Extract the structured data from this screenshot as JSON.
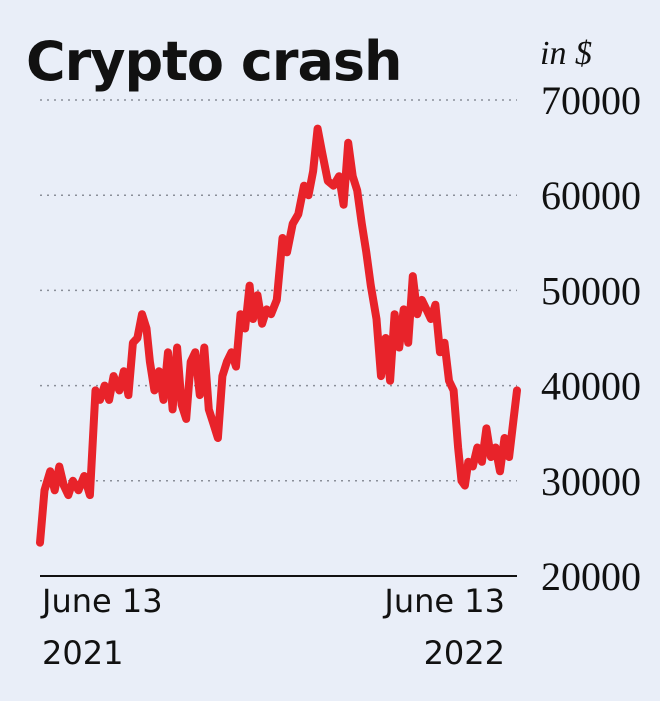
{
  "chart_data": {
    "type": "line",
    "title": "Crypto crash",
    "unit_label": "in $",
    "ylim": [
      20000,
      70000
    ],
    "y_ticks": [
      "70000",
      "60000",
      "50000",
      "40000",
      "30000",
      "20000"
    ],
    "x_ticks": [
      {
        "date": "2021-06-13",
        "line1": "June 13",
        "line2": "2021"
      },
      {
        "date": "2022-06-13",
        "line1": "June 13",
        "line2": "2022"
      }
    ],
    "grid": "horizontal-dotted",
    "colors": {
      "line": "#e8232a",
      "background": "#e9eef8"
    },
    "series": [
      {
        "x": [
          "2021-06-01",
          "2021-06-05",
          "2021-06-10",
          "2021-06-14",
          "2021-06-18",
          "2021-06-22",
          "2021-06-26",
          "2021-06-30",
          "2021-07-05",
          "2021-07-10",
          "2021-07-15",
          "2021-07-20",
          "2021-07-24",
          "2021-07-28",
          "2021-08-01",
          "2021-08-05",
          "2021-08-10",
          "2021-08-14",
          "2021-08-18",
          "2021-08-22",
          "2021-08-26",
          "2021-08-30",
          "2021-09-03",
          "2021-09-06",
          "2021-09-10",
          "2021-09-14",
          "2021-09-18",
          "2021-09-22",
          "2021-09-26",
          "2021-09-30",
          "2021-10-04",
          "2021-10-08",
          "2021-10-12",
          "2021-10-16",
          "2021-10-20",
          "2021-10-24",
          "2021-10-28",
          "2021-11-01",
          "2021-11-05",
          "2021-11-09",
          "2021-11-13",
          "2021-11-17",
          "2021-11-21",
          "2021-11-25",
          "2021-11-29",
          "2021-12-03",
          "2021-12-06",
          "2021-12-10",
          "2021-12-14",
          "2021-12-18",
          "2021-12-22",
          "2021-12-27",
          "2022-01-01",
          "2022-01-05",
          "2022-01-10",
          "2022-01-15",
          "2022-01-20",
          "2022-01-24",
          "2022-01-28",
          "2022-02-01",
          "2022-02-05",
          "2022-02-10",
          "2022-02-15",
          "2022-02-20",
          "2022-02-24",
          "2022-02-28",
          "2022-03-04",
          "2022-03-08",
          "2022-03-12",
          "2022-03-16",
          "2022-03-20",
          "2022-03-25",
          "2022-03-29",
          "2022-04-02",
          "2022-04-06",
          "2022-04-10",
          "2022-04-14",
          "2022-04-18",
          "2022-04-22",
          "2022-04-26",
          "2022-04-30",
          "2022-05-04",
          "2022-05-08",
          "2022-05-12",
          "2022-05-16",
          "2022-05-20",
          "2022-05-24",
          "2022-05-28",
          "2022-06-01",
          "2022-06-05",
          "2022-06-08",
          "2022-06-11",
          "2022-06-14",
          "2022-06-18",
          "2022-06-22",
          "2022-06-26",
          "2022-06-30",
          "2022-07-04",
          "2022-07-08",
          "2022-07-12",
          "2022-07-16",
          "2022-07-20",
          "2022-07-24",
          "2022-07-27"
        ],
        "values": [
          23500,
          29000,
          31000,
          29000,
          31500,
          29500,
          28500,
          30000,
          29000,
          30500,
          28500,
          39500,
          38500,
          40000,
          38500,
          41000,
          39500,
          41500,
          39000,
          44500,
          45000,
          47500,
          46000,
          42500,
          39500,
          41500,
          38500,
          43500,
          37500,
          44000,
          38000,
          36500,
          42500,
          43500,
          39000,
          44000,
          37500,
          36000,
          34500,
          41000,
          42500,
          43500,
          42000,
          47500,
          46000,
          50500,
          47000,
          49500,
          46500,
          48000,
          47500,
          49000,
          55500,
          54000,
          57000,
          58000,
          61000,
          60000,
          62500,
          67000,
          64500,
          61500,
          61000,
          62000,
          59000,
          65500,
          62000,
          60500,
          57000,
          54000,
          50500,
          47000,
          41000,
          45000,
          40500,
          47500,
          44000,
          48000,
          44500,
          51500,
          47500,
          49000,
          48000,
          47000,
          48500,
          43500,
          44500,
          40500,
          39500,
          33500,
          30000,
          29500,
          32000,
          31500,
          33500,
          32000,
          35500,
          32500,
          33500,
          31000,
          34500,
          32500,
          36500,
          39500
        ]
      }
    ]
  }
}
